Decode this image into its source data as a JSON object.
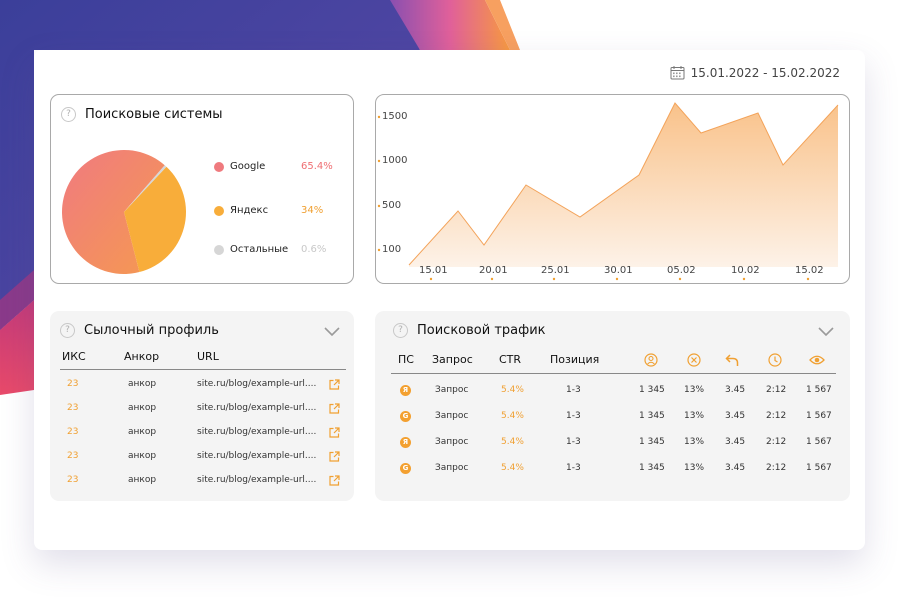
{
  "date_range": "15.01.2022 - 15.02.2022",
  "search_engines": {
    "title": "Поисковые системы",
    "help": "?",
    "items": [
      {
        "name": "Google",
        "pct": "65.4%",
        "color": "#ef7a7e"
      },
      {
        "name": "Яндекс",
        "pct": "34%",
        "color": "#f8ad3a"
      },
      {
        "name": "Остальные",
        "pct": "0.6%",
        "color": "#d6d6d6"
      }
    ]
  },
  "chart_data": {
    "type": "area",
    "x": [
      "15.01",
      "20.01",
      "25.01",
      "30.01",
      "05.02",
      "10.02",
      "15.02"
    ],
    "y_ticks": [
      "1500",
      "1000",
      "500",
      "100"
    ],
    "ylim": [
      0,
      1800
    ]
  },
  "links": {
    "title": "Сылочный профиль",
    "help": "?",
    "headers": [
      "ИКС",
      "Анкор",
      "URL"
    ],
    "rows": [
      {
        "iks": "23",
        "anchor": "анкор",
        "url": "site.ru/blog/example-url...."
      },
      {
        "iks": "23",
        "anchor": "анкор",
        "url": "site.ru/blog/example-url...."
      },
      {
        "iks": "23",
        "anchor": "анкор",
        "url": "site.ru/blog/example-url...."
      },
      {
        "iks": "23",
        "anchor": "анкор",
        "url": "site.ru/blog/example-url...."
      },
      {
        "iks": "23",
        "anchor": "анкор",
        "url": "site.ru/blog/example-url...."
      }
    ]
  },
  "traffic": {
    "title": "Поисковой трафик",
    "help": "?",
    "headers": [
      "ПС",
      "Запрос",
      "CTR",
      "Позиция"
    ],
    "rows": [
      {
        "engine": "yandex",
        "engine_letter": "Я",
        "query": "Запрос",
        "ctr": "5.4%",
        "pos": "1-3",
        "v1": "1 345",
        "v2": "13%",
        "v3": "3.45",
        "v4": "2:12",
        "v5": "1 567"
      },
      {
        "engine": "google",
        "engine_letter": "G",
        "query": "Запрос",
        "ctr": "5.4%",
        "pos": "1-3",
        "v1": "1 345",
        "v2": "13%",
        "v3": "3.45",
        "v4": "2:12",
        "v5": "1 567"
      },
      {
        "engine": "yandex",
        "engine_letter": "Я",
        "query": "Запрос",
        "ctr": "5.4%",
        "pos": "1-3",
        "v1": "1 345",
        "v2": "13%",
        "v3": "3.45",
        "v4": "2:12",
        "v5": "1 567"
      },
      {
        "engine": "google",
        "engine_letter": "G",
        "query": "Запрос",
        "ctr": "5.4%",
        "pos": "1-3",
        "v1": "1 345",
        "v2": "13%",
        "v3": "3.45",
        "v4": "2:12",
        "v5": "1 567"
      }
    ]
  }
}
